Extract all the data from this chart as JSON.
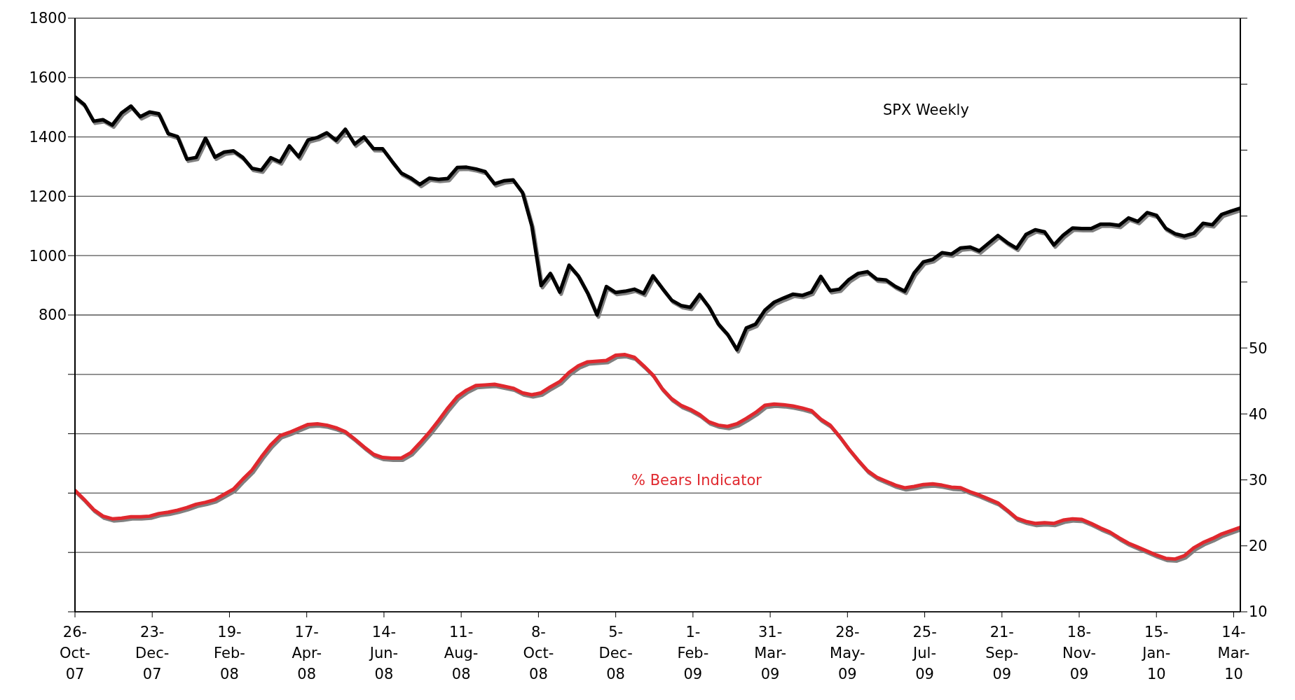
{
  "chart_data": {
    "type": "line",
    "x": [
      "2007-10-26",
      "2007-11-02",
      "2007-11-09",
      "2007-11-16",
      "2007-11-23",
      "2007-11-30",
      "2007-12-07",
      "2007-12-14",
      "2007-12-21",
      "2007-12-28",
      "2008-01-04",
      "2008-01-11",
      "2008-01-18",
      "2008-01-25",
      "2008-02-01",
      "2008-02-08",
      "2008-02-15",
      "2008-02-22",
      "2008-02-29",
      "2008-03-07",
      "2008-03-14",
      "2008-03-21",
      "2008-03-28",
      "2008-04-04",
      "2008-04-11",
      "2008-04-18",
      "2008-04-25",
      "2008-05-02",
      "2008-05-09",
      "2008-05-16",
      "2008-05-23",
      "2008-05-30",
      "2008-06-06",
      "2008-06-13",
      "2008-06-20",
      "2008-06-27",
      "2008-07-04",
      "2008-07-11",
      "2008-07-18",
      "2008-07-25",
      "2008-08-01",
      "2008-08-08",
      "2008-08-15",
      "2008-08-22",
      "2008-08-29",
      "2008-09-05",
      "2008-09-12",
      "2008-09-19",
      "2008-09-26",
      "2008-10-03",
      "2008-10-10",
      "2008-10-17",
      "2008-10-24",
      "2008-10-31",
      "2008-11-07",
      "2008-11-14",
      "2008-11-21",
      "2008-11-28",
      "2008-12-05",
      "2008-12-12",
      "2008-12-19",
      "2008-12-26",
      "2009-01-02",
      "2009-01-09",
      "2009-01-16",
      "2009-01-23",
      "2009-01-30",
      "2009-02-06",
      "2009-02-13",
      "2009-02-20",
      "2009-02-27",
      "2009-03-06",
      "2009-03-13",
      "2009-03-20",
      "2009-03-27",
      "2009-04-03",
      "2009-04-10",
      "2009-04-17",
      "2009-04-24",
      "2009-05-01",
      "2009-05-08",
      "2009-05-15",
      "2009-05-22",
      "2009-05-29",
      "2009-06-05",
      "2009-06-12",
      "2009-06-19",
      "2009-06-26",
      "2009-07-03",
      "2009-07-10",
      "2009-07-17",
      "2009-07-24",
      "2009-07-31",
      "2009-08-07",
      "2009-08-14",
      "2009-08-21",
      "2009-08-28",
      "2009-09-04",
      "2009-09-11",
      "2009-09-18",
      "2009-09-25",
      "2009-10-02",
      "2009-10-09",
      "2009-10-16",
      "2009-10-23",
      "2009-10-30",
      "2009-11-06",
      "2009-11-13",
      "2009-11-20",
      "2009-11-27",
      "2009-12-04",
      "2009-12-11",
      "2009-12-18",
      "2009-12-25",
      "2010-01-01",
      "2010-01-08",
      "2010-01-15",
      "2010-01-22",
      "2010-01-29",
      "2010-02-05",
      "2010-02-12",
      "2010-02-19",
      "2010-02-26",
      "2010-03-05",
      "2010-03-12",
      "2010-03-19"
    ],
    "series": [
      {
        "name": "SPX Weekly",
        "color": "#000000",
        "values": [
          1535,
          1509,
          1453,
          1458,
          1440,
          1481,
          1504,
          1468,
          1484,
          1478,
          1411,
          1401,
          1325,
          1331,
          1396,
          1332,
          1349,
          1353,
          1331,
          1294,
          1288,
          1330,
          1316,
          1370,
          1333,
          1390,
          1398,
          1414,
          1389,
          1426,
          1376,
          1400,
          1361,
          1360,
          1318,
          1278,
          1262,
          1240,
          1261,
          1257,
          1260,
          1297,
          1298,
          1292,
          1283,
          1242,
          1252,
          1255,
          1213,
          1100,
          899,
          940,
          877,
          968,
          931,
          873,
          800,
          896,
          876,
          880,
          887,
          873,
          932,
          890,
          850,
          832,
          826,
          869,
          827,
          770,
          735,
          683,
          756,
          769,
          816,
          843,
          857,
          870,
          866,
          877,
          930,
          882,
          887,
          919,
          940,
          946,
          921,
          918,
          896,
          880,
          941,
          979,
          987,
          1010,
          1005,
          1026,
          1029,
          1016,
          1042,
          1068,
          1044,
          1025,
          1071,
          1087,
          1080,
          1036,
          1069,
          1093,
          1091,
          1091,
          1106,
          1106,
          1102,
          1127,
          1115,
          1145,
          1136,
          1092,
          1074,
          1066,
          1075,
          1109,
          1104,
          1139,
          1150,
          1160
        ]
      },
      {
        "name": "% Bears Indicator",
        "color": "#e0282e",
        "axis": "y2",
        "values": [
          28.4,
          27.0,
          25.5,
          24.5,
          24.1,
          24.2,
          24.4,
          24.4,
          24.5,
          24.9,
          25.1,
          25.4,
          25.8,
          26.3,
          26.6,
          27.0,
          27.8,
          28.6,
          30.1,
          31.5,
          33.5,
          35.3,
          36.7,
          37.2,
          37.8,
          38.4,
          38.5,
          38.3,
          37.9,
          37.3,
          36.2,
          35.0,
          33.9,
          33.4,
          33.3,
          33.3,
          34.1,
          35.6,
          37.2,
          39.0,
          40.9,
          42.6,
          43.6,
          44.3,
          44.4,
          44.5,
          44.2,
          43.9,
          43.2,
          42.9,
          43.2,
          44.1,
          44.9,
          46.3,
          47.3,
          47.9,
          48.0,
          48.1,
          48.9,
          49.0,
          48.6,
          47.3,
          45.9,
          43.8,
          42.3,
          41.3,
          40.7,
          39.9,
          38.8,
          38.3,
          38.1,
          38.5,
          39.3,
          40.2,
          41.3,
          41.5,
          41.4,
          41.2,
          40.9,
          40.5,
          39.2,
          38.3,
          36.6,
          34.7,
          33.0,
          31.4,
          30.4,
          29.8,
          29.2,
          28.8,
          29.0,
          29.3,
          29.4,
          29.2,
          28.9,
          28.8,
          28.2,
          27.7,
          27.1,
          26.5,
          25.4,
          24.2,
          23.7,
          23.4,
          23.5,
          23.4,
          23.9,
          24.1,
          24.0,
          23.4,
          22.7,
          22.1,
          21.2,
          20.4,
          19.8,
          19.2,
          18.6,
          18.1,
          18.0,
          18.5,
          19.7,
          20.5,
          21.1,
          21.8,
          22.3,
          22.8
        ]
      }
    ],
    "xlim": [
      "2007-10-26",
      "2010-03-19"
    ],
    "xticks": [
      {
        "value": "2007-10-26",
        "label": "26-Oct-07"
      },
      {
        "value": "2007-12-23",
        "label": "23-Dec-07"
      },
      {
        "value": "2008-02-19",
        "label": "19-Feb-08"
      },
      {
        "value": "2008-04-17",
        "label": "17-Apr-08"
      },
      {
        "value": "2008-06-14",
        "label": "14-Jun-08"
      },
      {
        "value": "2008-08-11",
        "label": "11-Aug-08"
      },
      {
        "value": "2008-10-08",
        "label": "8-Oct-08"
      },
      {
        "value": "2008-12-05",
        "label": "5-Dec-08"
      },
      {
        "value": "2009-02-01",
        "label": "1-Feb-09"
      },
      {
        "value": "2009-03-31",
        "label": "31-Mar-09"
      },
      {
        "value": "2009-05-28",
        "label": "28-May-09"
      },
      {
        "value": "2009-07-25",
        "label": "25-Jul-09"
      },
      {
        "value": "2009-09-21",
        "label": "21-Sep-09"
      },
      {
        "value": "2009-11-18",
        "label": "18-Nov-09"
      },
      {
        "value": "2010-01-15",
        "label": "15-Jan-10"
      },
      {
        "value": "2010-03-14",
        "label": "14-Mar-10"
      }
    ],
    "ylim": [
      -200,
      1800
    ],
    "yticks": [
      {
        "value": -200,
        "label": null
      },
      {
        "value": 0,
        "label": null
      },
      {
        "value": 200,
        "label": null
      },
      {
        "value": 400,
        "label": null
      },
      {
        "value": 600,
        "label": null
      },
      800,
      1000,
      1200,
      1400,
      1600,
      1800
    ],
    "y2lim": [
      10,
      100
    ],
    "y2ticks": [
      10,
      20,
      30,
      40,
      50,
      {
        "value": 60,
        "label": null
      },
      {
        "value": 70,
        "label": null
      },
      {
        "value": 80,
        "label": null
      },
      {
        "value": 90,
        "label": null
      },
      {
        "value": 100,
        "label": null
      }
    ],
    "grid": "y"
  }
}
